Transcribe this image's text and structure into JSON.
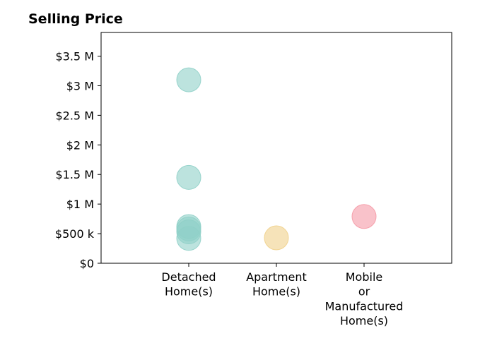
{
  "chart_data": {
    "type": "scatter",
    "title": "Selling Price",
    "xlabel": "",
    "ylabel": "",
    "categories": [
      [
        "Detached",
        "Home(s)"
      ],
      [
        "Apartment",
        "Home(s)"
      ],
      [
        "Mobile",
        "or",
        "Manufactured",
        "Home(s)"
      ]
    ],
    "yticks": [
      {
        "value": 0,
        "label": "$0"
      },
      {
        "value": 500000,
        "label": "$500 k"
      },
      {
        "value": 1000000,
        "label": "$1 M"
      },
      {
        "value": 1500000,
        "label": "$1.5 M"
      },
      {
        "value": 2000000,
        "label": "$2 M"
      },
      {
        "value": 2500000,
        "label": "$2.5 M"
      },
      {
        "value": 3000000,
        "label": "$3 M"
      },
      {
        "value": 3500000,
        "label": "$3.5 M"
      }
    ],
    "ylim": [
      0,
      3900000
    ],
    "xlim": [
      -1,
      3
    ],
    "grid": false,
    "colors": [
      "#8fd0c8",
      "#f0d08a",
      "#f59aa6"
    ],
    "points": [
      {
        "category": 0,
        "value": 3100000
      },
      {
        "category": 0,
        "value": 1450000
      },
      {
        "category": 0,
        "value": 620000
      },
      {
        "category": 0,
        "value": 580000
      },
      {
        "category": 0,
        "value": 530000
      },
      {
        "category": 0,
        "value": 420000
      },
      {
        "category": 1,
        "value": 430000
      },
      {
        "category": 2,
        "value": 790000
      }
    ]
  }
}
